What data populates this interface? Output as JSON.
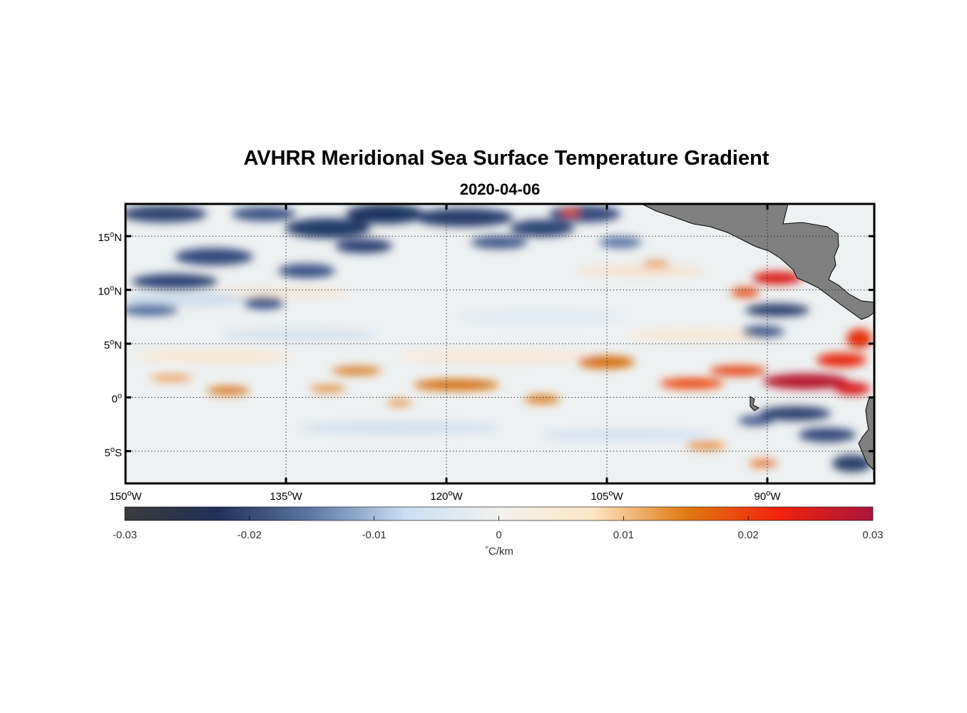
{
  "title": "AVHRR Meridional Sea Surface Temperature Gradient",
  "subtitle": "2020-04-06",
  "map": {
    "lon_range": [
      -150,
      -80
    ],
    "lat_range": [
      -8,
      18
    ],
    "grid": true,
    "lat_ticks": [
      {
        "value": 15,
        "num": "15",
        "hemi": "N"
      },
      {
        "value": 10,
        "num": "10",
        "hemi": "N"
      },
      {
        "value": 5,
        "num": "5",
        "hemi": "N"
      },
      {
        "value": 0,
        "num": "0",
        "hemi": ""
      },
      {
        "value": -5,
        "num": "5",
        "hemi": "S"
      }
    ],
    "lon_ticks": [
      {
        "value": -150,
        "num": "150",
        "hemi": "W"
      },
      {
        "value": -135,
        "num": "135",
        "hemi": "W"
      },
      {
        "value": -120,
        "num": "120",
        "hemi": "W"
      },
      {
        "value": -105,
        "num": "105",
        "hemi": "W"
      },
      {
        "value": -90,
        "num": "90",
        "hemi": "W"
      }
    ],
    "land_color": "#808080",
    "frame_color": "#000000"
  },
  "colorbar": {
    "min": -0.03,
    "max": 0.03,
    "ticks": [
      "-0.03",
      "-0.02",
      "-0.01",
      "0",
      "0.01",
      "0.02",
      "0.03"
    ],
    "unit_degree": "°",
    "unit_text": "C/km",
    "colors": [
      "#3b3b3b",
      "#1f3158",
      "#5d78a4",
      "#c9dff2",
      "#f2f2ee",
      "#fde6c6",
      "#e07a10",
      "#f2220d",
      "#a8153a"
    ]
  }
}
